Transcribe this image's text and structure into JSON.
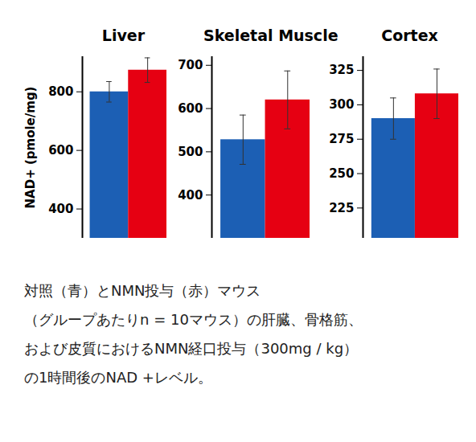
{
  "chart_data": [
    {
      "type": "bar",
      "title": "Liver",
      "y_label": "NAD+ (pmole/mg)",
      "categories": [
        null,
        null
      ],
      "values": [
        800,
        874
      ],
      "errors": [
        35,
        42
      ],
      "colors": [
        "#1c5fb4",
        "#e60012"
      ],
      "ylim": [
        300,
        920
      ],
      "yticks": [
        400,
        600,
        800
      ],
      "tick_labels": "y"
    },
    {
      "type": "bar",
      "title": "Skeletal Muscle",
      "categories": [
        null,
        null
      ],
      "values": [
        528,
        620
      ],
      "errors": [
        57,
        67
      ],
      "colors": [
        "#1c5fb4",
        "#e60012"
      ],
      "ylim": [
        300,
        720
      ],
      "yticks": [
        400,
        500,
        600,
        700
      ],
      "tick_labels": "y"
    },
    {
      "type": "bar",
      "title": "Cortex",
      "categories": [
        null,
        null
      ],
      "values": [
        290,
        308
      ],
      "errors": [
        15,
        18
      ],
      "colors": [
        "#1c5fb4",
        "#e60012"
      ],
      "ylim": [
        203,
        335
      ],
      "yticks": [
        225,
        250,
        275,
        300,
        325
      ],
      "tick_labels": "y"
    }
  ],
  "caption": [
    "対照（青）とNMN投与（赤）マウス",
    "（グループあたりn = 10マウス）の肝臓、骨格筋、",
    "および皮質におけるNMN経口投与（300mg / kg）",
    "の1時間後のNAD +レベル。"
  ]
}
